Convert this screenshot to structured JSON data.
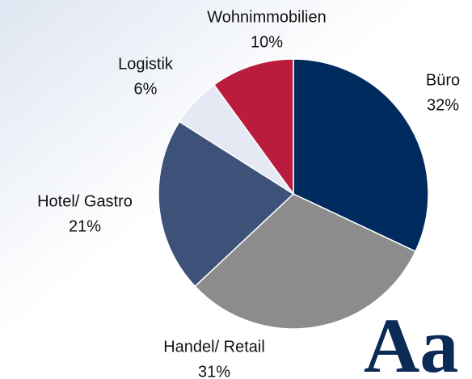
{
  "chart_data": {
    "type": "pie",
    "categories": [
      "Büro",
      "Handel/ Retail",
      "Hotel/ Gastro",
      "Logistik",
      "Wohnimmobilien"
    ],
    "values": [
      32,
      31,
      21,
      6,
      10
    ],
    "value_labels": [
      "32%",
      "31%",
      "21%",
      "6%",
      "10%"
    ],
    "colors": [
      "#002b5e",
      "#8c8c8c",
      "#3e5279",
      "#e4e9f4",
      "#b91c3d"
    ]
  },
  "logo": "Aa"
}
